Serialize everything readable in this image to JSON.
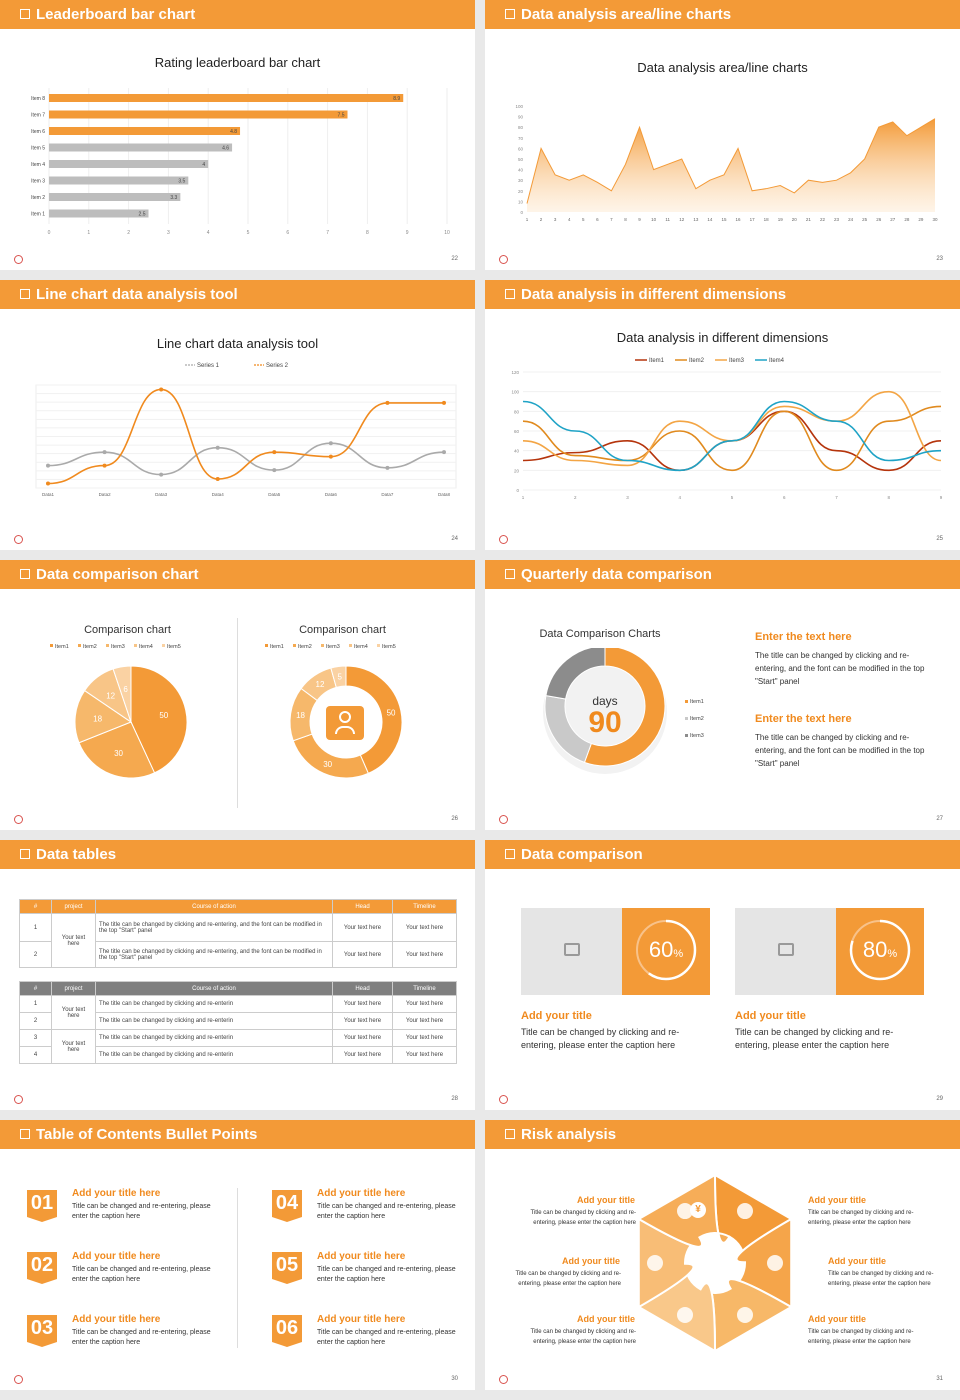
{
  "slides": [
    {
      "title": "Leaderboard bar chart",
      "page": "22"
    },
    {
      "title": "Data analysis area/line charts",
      "page": "23"
    },
    {
      "title": "Line chart data analysis tool",
      "page": "24"
    },
    {
      "title": "Data analysis in different dimensions",
      "page": "25"
    },
    {
      "title": "Data comparison chart",
      "page": "26"
    },
    {
      "title": "Quarterly data comparison",
      "page": "27"
    },
    {
      "title": "Data tables",
      "page": "28"
    },
    {
      "title": "Data comparison",
      "page": "29"
    },
    {
      "title": "Table of Contents Bullet Points",
      "page": "30"
    },
    {
      "title": "Risk analysis",
      "page": "31"
    }
  ],
  "chart_data": [
    {
      "type": "bar",
      "title": "Rating leaderboard bar chart",
      "categories": [
        "Item 8",
        "Item 7",
        "Item 6",
        "Item 5",
        "Item 4",
        "Item 3",
        "Item 2",
        "Item 1"
      ],
      "values": [
        8.9,
        7.5,
        4.8,
        4.6,
        4,
        3.5,
        3.3,
        2.5
      ],
      "xlim": [
        0,
        10
      ],
      "xticks": [
        "0",
        "1",
        "2",
        "3",
        "4",
        "5",
        "6",
        "7",
        "8",
        "9",
        "10"
      ]
    },
    {
      "type": "area",
      "title": "Data analysis area/line charts",
      "x": [
        "1",
        "2",
        "3",
        "4",
        "5",
        "6",
        "7",
        "8",
        "9",
        "10",
        "11",
        "12",
        "13",
        "14",
        "15",
        "16",
        "17",
        "18",
        "19",
        "20",
        "21",
        "22",
        "23",
        "24",
        "25",
        "26",
        "27",
        "28",
        "29",
        "30"
      ],
      "values": [
        8,
        60,
        35,
        30,
        35,
        28,
        20,
        45,
        80,
        40,
        45,
        50,
        22,
        30,
        35,
        60,
        20,
        22,
        25,
        18,
        30,
        28,
        30,
        37,
        50,
        80,
        85,
        72,
        80,
        88
      ],
      "ylim": [
        0,
        100
      ],
      "yticks": [
        "0",
        "10",
        "20",
        "30",
        "40",
        "50",
        "60",
        "70",
        "80",
        "90",
        "100"
      ]
    },
    {
      "type": "line",
      "title": "Line chart data analysis tool",
      "categories": [
        "Data1",
        "Data2",
        "Data3",
        "Data4",
        "Data5",
        "Data6",
        "Data7",
        "Data8"
      ],
      "series": [
        {
          "name": "Series 1",
          "values": [
            20,
            50,
            0,
            60,
            10,
            70,
            15,
            50
          ]
        },
        {
          "name": "Series 2",
          "values": [
            -20,
            20,
            190,
            -10,
            50,
            40,
            160,
            160
          ]
        }
      ],
      "ylim": [
        -30,
        200
      ]
    },
    {
      "type": "line",
      "title": "Data analysis in different dimensions",
      "x": [
        "1",
        "2",
        "3",
        "4",
        "5",
        "6",
        "7",
        "8",
        "9"
      ],
      "series": [
        {
          "name": "Item1",
          "values": [
            30,
            38,
            50,
            20,
            50,
            80,
            40,
            20,
            50
          ],
          "color": "#b5340c"
        },
        {
          "name": "Item2",
          "values": [
            70,
            35,
            30,
            60,
            20,
            80,
            20,
            70,
            85
          ],
          "color": "#e08a1e"
        },
        {
          "name": "Item3",
          "values": [
            50,
            30,
            25,
            70,
            50,
            85,
            70,
            100,
            30
          ],
          "color": "#f3a545"
        },
        {
          "name": "Item4",
          "values": [
            90,
            60,
            30,
            20,
            50,
            90,
            70,
            30,
            40
          ],
          "color": "#1fa3c6"
        }
      ],
      "ylim": [
        0,
        120
      ],
      "yticks": [
        "0",
        "20",
        "40",
        "60",
        "80",
        "100",
        "120"
      ]
    },
    {
      "type": "pie",
      "title": "Comparison chart",
      "categories": [
        "Item1",
        "Item2",
        "Item3",
        "Item4",
        "Item5"
      ],
      "values": [
        50,
        30,
        18,
        12,
        6
      ]
    },
    {
      "type": "pie",
      "title": "Comparison chart",
      "donut": true,
      "categories": [
        "Item1",
        "Item2",
        "Item3",
        "Item4",
        "Item5"
      ],
      "values": [
        50,
        30,
        18,
        12,
        5
      ]
    },
    {
      "type": "pie",
      "title": "Data Comparison Charts",
      "donut": true,
      "categories": [
        "Item1",
        "Item2",
        "Item3"
      ],
      "values": [
        50,
        20,
        20
      ],
      "center_label": "days",
      "center_value": "90"
    }
  ],
  "s1": {
    "title": "Rating leaderboard bar chart"
  },
  "s2": {
    "title": "Data analysis area/line charts"
  },
  "s3": {
    "title": "Line chart data analysis tool"
  },
  "s4": {
    "title": "Data analysis in different dimensions"
  },
  "s5": {
    "title_left": "Comparison chart",
    "title_right": "Comparison chart"
  },
  "s6": {
    "title": "Data Comparison Charts",
    "days": "days",
    "value": "90",
    "blocks": [
      {
        "heading": "Enter the text here",
        "text": "The title can be changed by clicking and re-entering, and the font can be modified in the top \"Start\" panel"
      },
      {
        "heading": "Enter the text here",
        "text": "The title can be changed by clicking and re-entering, and the font can be modified in the top \"Start\" panel"
      }
    ]
  },
  "s7": {
    "t1": {
      "headers": [
        "#",
        "project",
        "Course of action",
        "Head",
        "Timeline"
      ],
      "project": "Your text here",
      "rows": [
        [
          "1",
          "The title can be changed by clicking and re-entering, and the font can be modified in the top \"Start\" panel",
          "Your text here",
          "Your text here"
        ],
        [
          "2",
          "The title can be changed by clicking and re-entering, and the font can be modified in the top \"Start\" panel",
          "Your text here",
          "Your text here"
        ]
      ]
    },
    "t2": {
      "headers": [
        "#",
        "project",
        "Course of action",
        "Head",
        "Timeline"
      ],
      "project1": "Your text here",
      "project2": "Your text here",
      "rows": [
        [
          "1",
          "The title can be changed by clicking and re-enterin",
          "Your text here",
          "Your text here"
        ],
        [
          "2",
          "The title can be changed by clicking and re-enterin",
          "Your text here",
          "Your text here"
        ],
        [
          "3",
          "The title can be changed by clicking and re-enterin",
          "Your text here",
          "Your text here"
        ],
        [
          "4",
          "The title can be changed by clicking and re-enterin",
          "Your text here",
          "Your text here"
        ]
      ]
    }
  },
  "s8": {
    "cards": [
      {
        "percent": "60",
        "unit": "%",
        "pct_value": 0.6,
        "heading": "Add your title",
        "text": "Title can be changed by clicking and re-entering, please enter the caption here"
      },
      {
        "percent": "80",
        "unit": "%",
        "pct_value": 0.8,
        "heading": "Add your title",
        "text": "Title can be changed by clicking and re-entering, please enter the caption here"
      }
    ]
  },
  "s9": {
    "items": [
      {
        "num": "01",
        "heading": "Add your title here",
        "text": "Title can be changed and re-entering, please enter the caption here"
      },
      {
        "num": "02",
        "heading": "Add your title here",
        "text": "Title can be changed and re-entering, please enter the caption here"
      },
      {
        "num": "03",
        "heading": "Add your title here",
        "text": "Title can be changed and re-entering, please enter the caption here"
      },
      {
        "num": "04",
        "heading": "Add your title here",
        "text": "Title can be changed and re-entering, please enter the caption here"
      },
      {
        "num": "05",
        "heading": "Add your title here",
        "text": "Title can be changed and re-entering, please enter the caption here"
      },
      {
        "num": "06",
        "heading": "Add your title here",
        "text": "Title can be changed and re-entering, please enter the caption here"
      }
    ]
  },
  "s10": {
    "items": [
      {
        "heading": "Add your title",
        "text": "Title can be changed by clicking and re-entering, please enter the caption here"
      },
      {
        "heading": "Add your title",
        "text": "Title can be changed by clicking and re-entering, please enter the caption here"
      },
      {
        "heading": "Add your title",
        "text": "Title can be changed by clicking and re-entering, please enter the caption here"
      },
      {
        "heading": "Add your title",
        "text": "Title can be changed by clicking and re-entering, please enter the caption here"
      },
      {
        "heading": "Add your title",
        "text": "Title can be changed by clicking and re-entering, please enter the caption here"
      },
      {
        "heading": "Add your title",
        "text": "Title can be changed by clicking and re-entering, please enter the caption here"
      }
    ],
    "yen_symbol": "¥"
  },
  "colors": {
    "accent": "#f39a37",
    "accent_dark": "#f08a1e",
    "gray": "#bdbdbd",
    "dark_gray": "#7f7f7f"
  }
}
